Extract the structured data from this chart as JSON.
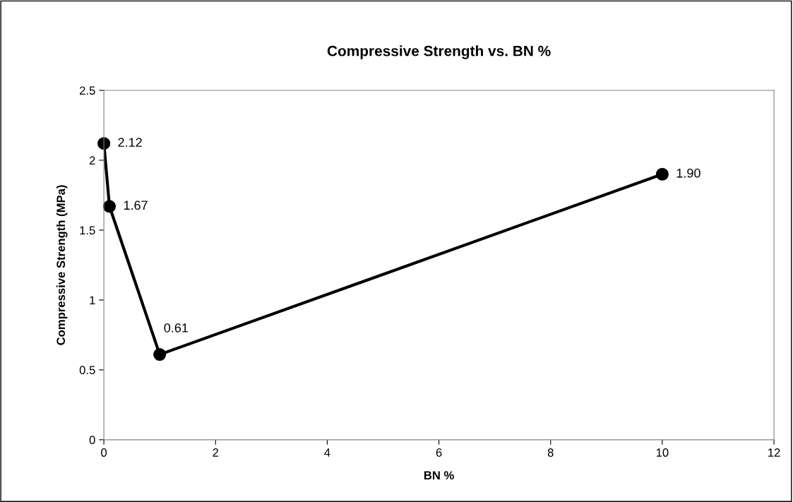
{
  "chart_data": {
    "type": "line",
    "title": "Compressive Strength vs. BN %",
    "xlabel": "BN %",
    "ylabel": "Compressive Strength (MPa)",
    "x": [
      0,
      0.1,
      1,
      10
    ],
    "series": [
      {
        "color": "#000000",
        "values": [
          2.12,
          1.67,
          0.61,
          1.9
        ],
        "value_labels": [
          "2.12",
          "1.67",
          "0.61",
          "1.90"
        ]
      }
    ],
    "xlim": [
      0,
      12
    ],
    "xticks": [
      0,
      2,
      4,
      6,
      8,
      10,
      12
    ],
    "ylim": [
      0,
      2.5
    ],
    "yticks": [
      0,
      0.5,
      1,
      1.5,
      2,
      2.5
    ],
    "grid": false,
    "legend": false,
    "marker": "circle",
    "line_style": "solid"
  }
}
